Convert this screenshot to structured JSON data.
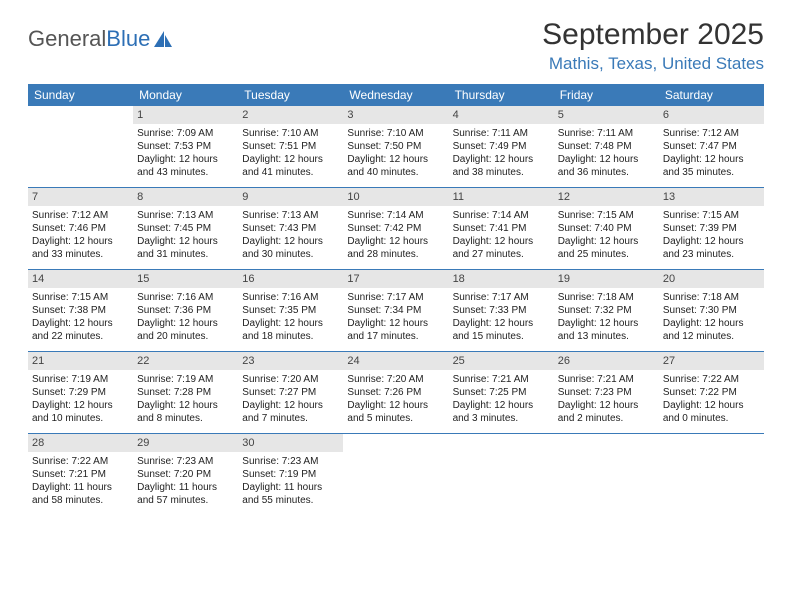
{
  "logo": {
    "word1": "General",
    "word2": "Blue"
  },
  "title": "September 2025",
  "location": "Mathis, Texas, United States",
  "colors": {
    "header_bg": "#3a7ab8",
    "header_text": "#ffffff",
    "daynum_bg": "#e6e6e6",
    "border": "#3a7ab8",
    "location_color": "#3a7ab8",
    "logo_gray": "#555555",
    "logo_blue": "#2d6fb5"
  },
  "weekdays": [
    "Sunday",
    "Monday",
    "Tuesday",
    "Wednesday",
    "Thursday",
    "Friday",
    "Saturday"
  ],
  "calendar": {
    "start_weekday": 1,
    "num_days": 30,
    "days": [
      {
        "n": 1,
        "sunrise": "7:09 AM",
        "sunset": "7:53 PM",
        "daylight": "12 hours and 43 minutes."
      },
      {
        "n": 2,
        "sunrise": "7:10 AM",
        "sunset": "7:51 PM",
        "daylight": "12 hours and 41 minutes."
      },
      {
        "n": 3,
        "sunrise": "7:10 AM",
        "sunset": "7:50 PM",
        "daylight": "12 hours and 40 minutes."
      },
      {
        "n": 4,
        "sunrise": "7:11 AM",
        "sunset": "7:49 PM",
        "daylight": "12 hours and 38 minutes."
      },
      {
        "n": 5,
        "sunrise": "7:11 AM",
        "sunset": "7:48 PM",
        "daylight": "12 hours and 36 minutes."
      },
      {
        "n": 6,
        "sunrise": "7:12 AM",
        "sunset": "7:47 PM",
        "daylight": "12 hours and 35 minutes."
      },
      {
        "n": 7,
        "sunrise": "7:12 AM",
        "sunset": "7:46 PM",
        "daylight": "12 hours and 33 minutes."
      },
      {
        "n": 8,
        "sunrise": "7:13 AM",
        "sunset": "7:45 PM",
        "daylight": "12 hours and 31 minutes."
      },
      {
        "n": 9,
        "sunrise": "7:13 AM",
        "sunset": "7:43 PM",
        "daylight": "12 hours and 30 minutes."
      },
      {
        "n": 10,
        "sunrise": "7:14 AM",
        "sunset": "7:42 PM",
        "daylight": "12 hours and 28 minutes."
      },
      {
        "n": 11,
        "sunrise": "7:14 AM",
        "sunset": "7:41 PM",
        "daylight": "12 hours and 27 minutes."
      },
      {
        "n": 12,
        "sunrise": "7:15 AM",
        "sunset": "7:40 PM",
        "daylight": "12 hours and 25 minutes."
      },
      {
        "n": 13,
        "sunrise": "7:15 AM",
        "sunset": "7:39 PM",
        "daylight": "12 hours and 23 minutes."
      },
      {
        "n": 14,
        "sunrise": "7:15 AM",
        "sunset": "7:38 PM",
        "daylight": "12 hours and 22 minutes."
      },
      {
        "n": 15,
        "sunrise": "7:16 AM",
        "sunset": "7:36 PM",
        "daylight": "12 hours and 20 minutes."
      },
      {
        "n": 16,
        "sunrise": "7:16 AM",
        "sunset": "7:35 PM",
        "daylight": "12 hours and 18 minutes."
      },
      {
        "n": 17,
        "sunrise": "7:17 AM",
        "sunset": "7:34 PM",
        "daylight": "12 hours and 17 minutes."
      },
      {
        "n": 18,
        "sunrise": "7:17 AM",
        "sunset": "7:33 PM",
        "daylight": "12 hours and 15 minutes."
      },
      {
        "n": 19,
        "sunrise": "7:18 AM",
        "sunset": "7:32 PM",
        "daylight": "12 hours and 13 minutes."
      },
      {
        "n": 20,
        "sunrise": "7:18 AM",
        "sunset": "7:30 PM",
        "daylight": "12 hours and 12 minutes."
      },
      {
        "n": 21,
        "sunrise": "7:19 AM",
        "sunset": "7:29 PM",
        "daylight": "12 hours and 10 minutes."
      },
      {
        "n": 22,
        "sunrise": "7:19 AM",
        "sunset": "7:28 PM",
        "daylight": "12 hours and 8 minutes."
      },
      {
        "n": 23,
        "sunrise": "7:20 AM",
        "sunset": "7:27 PM",
        "daylight": "12 hours and 7 minutes."
      },
      {
        "n": 24,
        "sunrise": "7:20 AM",
        "sunset": "7:26 PM",
        "daylight": "12 hours and 5 minutes."
      },
      {
        "n": 25,
        "sunrise": "7:21 AM",
        "sunset": "7:25 PM",
        "daylight": "12 hours and 3 minutes."
      },
      {
        "n": 26,
        "sunrise": "7:21 AM",
        "sunset": "7:23 PM",
        "daylight": "12 hours and 2 minutes."
      },
      {
        "n": 27,
        "sunrise": "7:22 AM",
        "sunset": "7:22 PM",
        "daylight": "12 hours and 0 minutes."
      },
      {
        "n": 28,
        "sunrise": "7:22 AM",
        "sunset": "7:21 PM",
        "daylight": "11 hours and 58 minutes."
      },
      {
        "n": 29,
        "sunrise": "7:23 AM",
        "sunset": "7:20 PM",
        "daylight": "11 hours and 57 minutes."
      },
      {
        "n": 30,
        "sunrise": "7:23 AM",
        "sunset": "7:19 PM",
        "daylight": "11 hours and 55 minutes."
      }
    ]
  },
  "labels": {
    "sunrise": "Sunrise:",
    "sunset": "Sunset:",
    "daylight": "Daylight:"
  }
}
